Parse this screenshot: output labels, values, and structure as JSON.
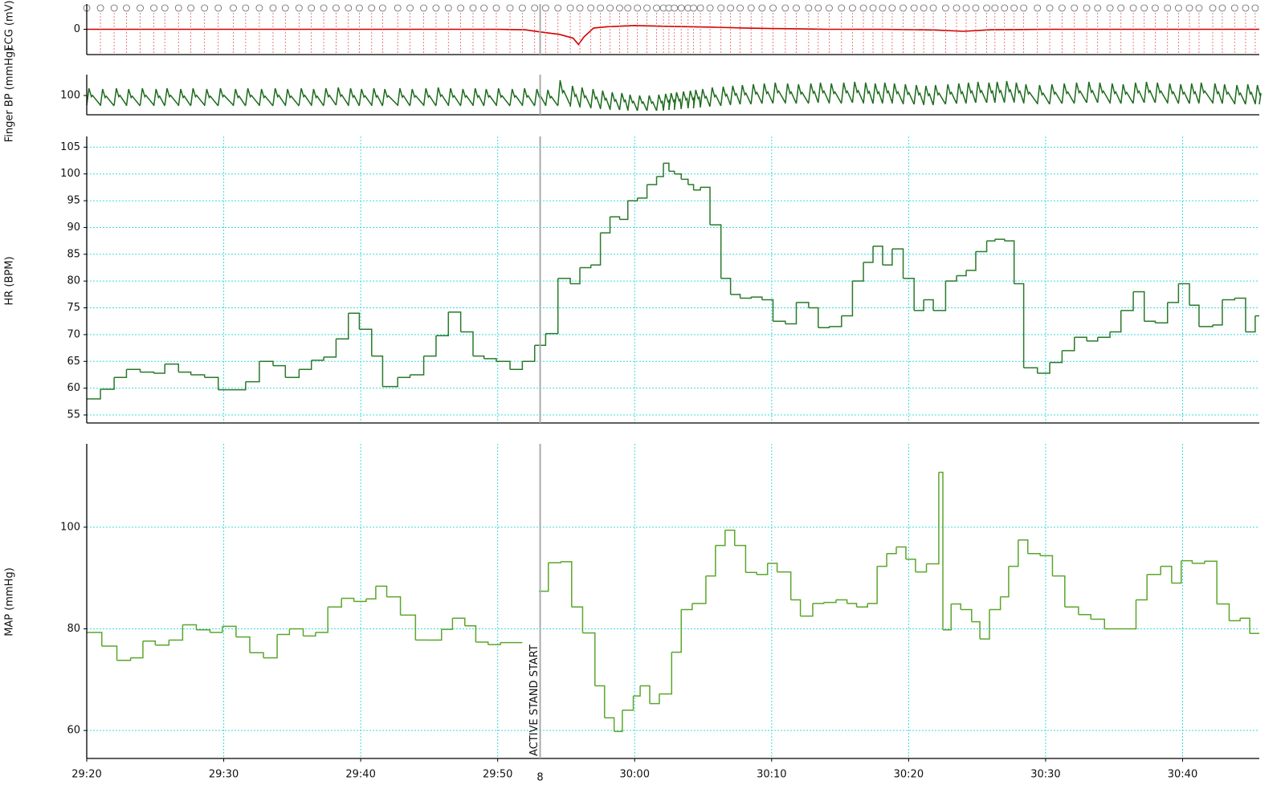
{
  "chart_data": [
    {
      "type": "line",
      "y_label": "ECG (mV)",
      "color": "#d40000",
      "x": [
        1760,
        1765,
        1770,
        1775,
        1780,
        1785,
        1790,
        1792,
        1793,
        1794.5,
        1795.5,
        1795.9,
        1796.3,
        1797,
        1798,
        1800,
        1802,
        1804,
        1806,
        1808,
        1810,
        1812,
        1814,
        1818,
        1822,
        1824,
        1826,
        1830,
        1836,
        1840,
        1845.6
      ],
      "values": [
        0,
        0,
        0,
        0,
        0,
        0,
        0,
        -0.02,
        -0.1,
        -0.2,
        -0.35,
        -0.6,
        -0.3,
        0.05,
        0.1,
        0.15,
        0.12,
        0.1,
        0.08,
        0.05,
        0.03,
        0.02,
        0,
        0,
        -0.03,
        -0.08,
        -0.02,
        0,
        0,
        0,
        0
      ],
      "xlim": [
        1760,
        1845.6
      ],
      "ylim": [
        -1,
        1
      ],
      "yticks": [
        0
      ]
    },
    {
      "type": "waveform",
      "y_label": "Finger BP (mmHg)",
      "color": "#1c6b1c",
      "x": [
        1760,
        1761,
        1762,
        1762.9,
        1763.9,
        1764.9,
        1765.7,
        1766.7,
        1767.6,
        1768.6,
        1769.6,
        1770.7,
        1771.6,
        1772.6,
        1773.6,
        1774.5,
        1775.5,
        1776.4,
        1777.3,
        1778.2,
        1779.1,
        1779.9,
        1780.8,
        1781.6,
        1782.7,
        1783.6,
        1784.6,
        1785.5,
        1786.4,
        1787.3,
        1788.2,
        1789,
        1789.9,
        1790.9,
        1791.8,
        1792.7,
        1793.5,
        1794.4,
        1795.3,
        1796,
        1796.8,
        1797.5,
        1798.2,
        1798.9,
        1799.5,
        1800.2,
        1800.9,
        1801.6,
        1802.1,
        1802.5,
        1802.9,
        1803.4,
        1803.9,
        1804.3,
        1804.8,
        1805.5,
        1806.3,
        1807,
        1807.7,
        1808.5,
        1809.3,
        1810.1,
        1811,
        1811.8,
        1812.7,
        1813.4,
        1814.2,
        1815.1,
        1815.9,
        1816.7,
        1817.4,
        1818.1,
        1818.8,
        1819.6,
        1820.4,
        1821.1,
        1821.8,
        1822.7,
        1823.5,
        1824.2,
        1824.9,
        1825.7,
        1826.3,
        1827,
        1827.7,
        1828.4,
        1829.4,
        1830.3,
        1831.2,
        1832.1,
        1833,
        1833.8,
        1834.7,
        1835.5,
        1836.4,
        1837.2,
        1838,
        1838.9,
        1839.7,
        1840.5,
        1841.2,
        1842.2,
        1842.9,
        1843.8,
        1844.6,
        1845.3
      ],
      "systolic": [
        109,
        108,
        109,
        108,
        109,
        108,
        109,
        108,
        109,
        108,
        109,
        108,
        109,
        108,
        109,
        108,
        109,
        108,
        109,
        110,
        109,
        108,
        109,
        108,
        109,
        108,
        109,
        110,
        109,
        108,
        109,
        108,
        109,
        108,
        109,
        108,
        107,
        119,
        112,
        110,
        108,
        106,
        104,
        103,
        101,
        100,
        100,
        101,
        102,
        103,
        104,
        105,
        106,
        107,
        108,
        110,
        111,
        112,
        113,
        114,
        115,
        116,
        115,
        114,
        115,
        116,
        115,
        116,
        117,
        116,
        115,
        116,
        115,
        114,
        113,
        112,
        113,
        114,
        115,
        116,
        117,
        116,
        117,
        118,
        116,
        114,
        113,
        114,
        115,
        116,
        117,
        116,
        115,
        114,
        116,
        117,
        116,
        115,
        114,
        115,
        116,
        115,
        114,
        113,
        114,
        113
      ],
      "diastolic": [
        88,
        87,
        88,
        87,
        88,
        87,
        88,
        87,
        88,
        87,
        88,
        87,
        88,
        87,
        88,
        87,
        88,
        87,
        88,
        88,
        87,
        88,
        87,
        88,
        87,
        88,
        87,
        88,
        87,
        88,
        87,
        88,
        87,
        88,
        87,
        88,
        87,
        88,
        86,
        85,
        84,
        83,
        82,
        82,
        81,
        81,
        81,
        81,
        82,
        82,
        83,
        84,
        84,
        85,
        86,
        87,
        88,
        89,
        89,
        90,
        90,
        91,
        90,
        90,
        91,
        91,
        90,
        91,
        91,
        90,
        90,
        91,
        90,
        89,
        89,
        88,
        89,
        90,
        90,
        91,
        91,
        91,
        91,
        92,
        91,
        90,
        89,
        90,
        90,
        91,
        91,
        91,
        90,
        90,
        91,
        91,
        91,
        90,
        90,
        90,
        91,
        90,
        90,
        89,
        90,
        89
      ],
      "xlim": [
        1760,
        1845.6
      ],
      "ylim": [
        76,
        126
      ],
      "yticks": [
        100
      ]
    },
    {
      "type": "step",
      "y_label": "HR (BPM)",
      "color": "#2a7a2a",
      "x": [
        1760,
        1761,
        1762,
        1762.9,
        1763.9,
        1764.9,
        1765.7,
        1766.7,
        1767.6,
        1768.6,
        1769.6,
        1770.7,
        1771.6,
        1772.6,
        1773.6,
        1774.5,
        1775.5,
        1776.4,
        1777.3,
        1778.2,
        1779.1,
        1779.9,
        1780.8,
        1781.6,
        1782.7,
        1783.6,
        1784.6,
        1785.5,
        1786.4,
        1787.3,
        1788.2,
        1789,
        1789.9,
        1790.9,
        1791.8,
        1792.7,
        1793.5,
        1794.4,
        1795.3,
        1796,
        1796.8,
        1797.5,
        1798.2,
        1798.9,
        1799.5,
        1800.2,
        1800.9,
        1801.6,
        1802.1,
        1802.5,
        1802.9,
        1803.4,
        1803.9,
        1804.3,
        1804.8,
        1805.5,
        1806.3,
        1807,
        1807.7,
        1808.5,
        1809.3,
        1810.1,
        1811,
        1811.8,
        1812.7,
        1813.4,
        1814.2,
        1815.1,
        1815.9,
        1816.7,
        1817.4,
        1818.1,
        1818.8,
        1819.6,
        1820.4,
        1821.1,
        1821.8,
        1822.7,
        1823.5,
        1824.2,
        1824.9,
        1825.7,
        1826.3,
        1827,
        1827.7,
        1828.4,
        1829.4,
        1830.3,
        1831.2,
        1832.1,
        1833,
        1833.8,
        1834.7,
        1835.5,
        1836.4,
        1837.2,
        1838,
        1838.9,
        1839.7,
        1840.5,
        1841.2,
        1842.2,
        1842.9,
        1843.8,
        1844.6,
        1845.3
      ],
      "values": [
        58,
        59.8,
        62,
        63.5,
        63,
        62.8,
        64.5,
        63,
        62.5,
        62,
        59.7,
        59.7,
        61.2,
        65,
        64.2,
        62,
        63.5,
        65.2,
        65.8,
        69.2,
        74,
        71,
        66,
        60.3,
        62,
        62.5,
        66,
        69.8,
        74.2,
        70.5,
        66,
        65.5,
        65,
        63.5,
        65,
        68,
        70.2,
        80.5,
        79.5,
        82.5,
        83,
        89,
        92,
        91.5,
        95,
        95.5,
        98,
        99.5,
        102,
        100.5,
        100,
        99,
        98,
        97,
        97.5,
        90.5,
        80.5,
        77.5,
        76.8,
        77,
        76.5,
        72.5,
        72,
        76,
        75,
        71.3,
        71.5,
        73.5,
        80,
        83.5,
        86.5,
        83,
        86,
        80.5,
        74.5,
        76.5,
        74.5,
        80,
        81,
        82,
        85.5,
        87.5,
        87.8,
        87.5,
        79.5,
        63.8,
        62.8,
        64.8,
        67,
        69.5,
        68.8,
        69.5,
        70.5,
        74.5,
        78,
        72.5,
        72.2,
        76,
        79.5,
        75.5,
        71.5,
        71.8,
        76.5,
        76.8,
        70.5,
        73.5
      ],
      "xlim": [
        1760,
        1845.6
      ],
      "ylim": [
        53.5,
        107
      ],
      "yticks": [
        55,
        60,
        65,
        70,
        75,
        80,
        85,
        90,
        95,
        100,
        105
      ],
      "xticks": [
        1760,
        1770,
        1780,
        1790,
        1800,
        1810,
        1820,
        1830,
        1840
      ],
      "grid": true
    },
    {
      "type": "step",
      "y_label": "MAP (mmHg)",
      "color": "#5ba62c",
      "x": [
        1760,
        1761.1,
        1762.2,
        1763.2,
        1764.1,
        1765,
        1766,
        1767,
        1768,
        1769,
        1769.9,
        1770.9,
        1771.9,
        1772.9,
        1773.9,
        1774.8,
        1775.8,
        1776.7,
        1777.6,
        1778.6,
        1779.5,
        1780.4,
        1781.1,
        1781.9,
        1782.9,
        1784,
        1784.9,
        1785.9,
        1786.7,
        1787.6,
        1788.4,
        1789.3,
        1790.2,
        1791.8,
        1793,
        1793.7,
        1794.6,
        1795.4,
        1796.2,
        1797.1,
        1797.8,
        1798.5,
        1799.1,
        1799.9,
        1800.4,
        1801.1,
        1801.8,
        1802.7,
        1803.4,
        1804.2,
        1805.2,
        1805.9,
        1806.6,
        1807.3,
        1808.1,
        1808.9,
        1809.7,
        1810.4,
        1811.4,
        1812.1,
        1813,
        1813.8,
        1814.7,
        1815.5,
        1816.2,
        1817,
        1817.7,
        1818.4,
        1819.1,
        1819.8,
        1820.5,
        1821.3,
        1822.2,
        1822.5,
        1823.1,
        1823.8,
        1824.6,
        1825.2,
        1825.9,
        1826.7,
        1827.3,
        1828,
        1828.7,
        1829.6,
        1830.5,
        1831.4,
        1832.4,
        1833.3,
        1834.3,
        1836.6,
        1837.4,
        1838.4,
        1839.2,
        1839.9,
        1840.7,
        1841.6,
        1842.5,
        1843.4,
        1844.2,
        1844.9
      ],
      "values": [
        79.3,
        76.6,
        73.8,
        74.3,
        77.6,
        76.8,
        77.8,
        80.8,
        79.8,
        79.3,
        80.5,
        78.4,
        75.3,
        74.3,
        78.9,
        80,
        78.6,
        79.3,
        84.3,
        86,
        85.4,
        85.9,
        88.4,
        86.3,
        82.7,
        77.8,
        77.8,
        79.9,
        82.1,
        80.6,
        77.4,
        76.9,
        77.3,
        null,
        87.4,
        93,
        93.2,
        84.3,
        79.2,
        68.8,
        62.5,
        59.8,
        64,
        66.8,
        68.8,
        65.3,
        67.2,
        75.4,
        83.8,
        85,
        90.4,
        96.4,
        99.4,
        96.4,
        91.1,
        90.7,
        92.9,
        91.2,
        85.7,
        82.5,
        85,
        85.2,
        85.7,
        85,
        84.3,
        85,
        92.3,
        94.8,
        96.1,
        93.7,
        91.2,
        92.8,
        110.8,
        79.8,
        84.9,
        83.8,
        81.4,
        78,
        83.8,
        86.3,
        92.3,
        97.5,
        94.8,
        94.4,
        90.4,
        84.3,
        82.8,
        81.9,
        80,
        85.7,
        90.7,
        92.3,
        89,
        93.4,
        92.9,
        93.3,
        84.9,
        81.6,
        82.1,
        79.1
      ],
      "xlim": [
        1760,
        1845.6
      ],
      "ylim": [
        54.5,
        116.4
      ],
      "yticks": [
        60,
        80,
        100
      ],
      "xticks": [
        {
          "value": 1760,
          "label": "29:20"
        },
        {
          "value": 1770,
          "label": "29:30"
        },
        {
          "value": 1780,
          "label": "29:40"
        },
        {
          "value": 1790,
          "label": "29:50"
        },
        {
          "value": 1800,
          "label": "30:00"
        },
        {
          "value": 1810,
          "label": "30:10"
        },
        {
          "value": 1820,
          "label": "30:20"
        },
        {
          "value": 1830,
          "label": "30:30"
        },
        {
          "value": 1840,
          "label": "30:40"
        }
      ],
      "grid": true,
      "annotation": {
        "x": 1793.1,
        "text": "ACTIVE STAND START",
        "id": 8
      }
    }
  ]
}
